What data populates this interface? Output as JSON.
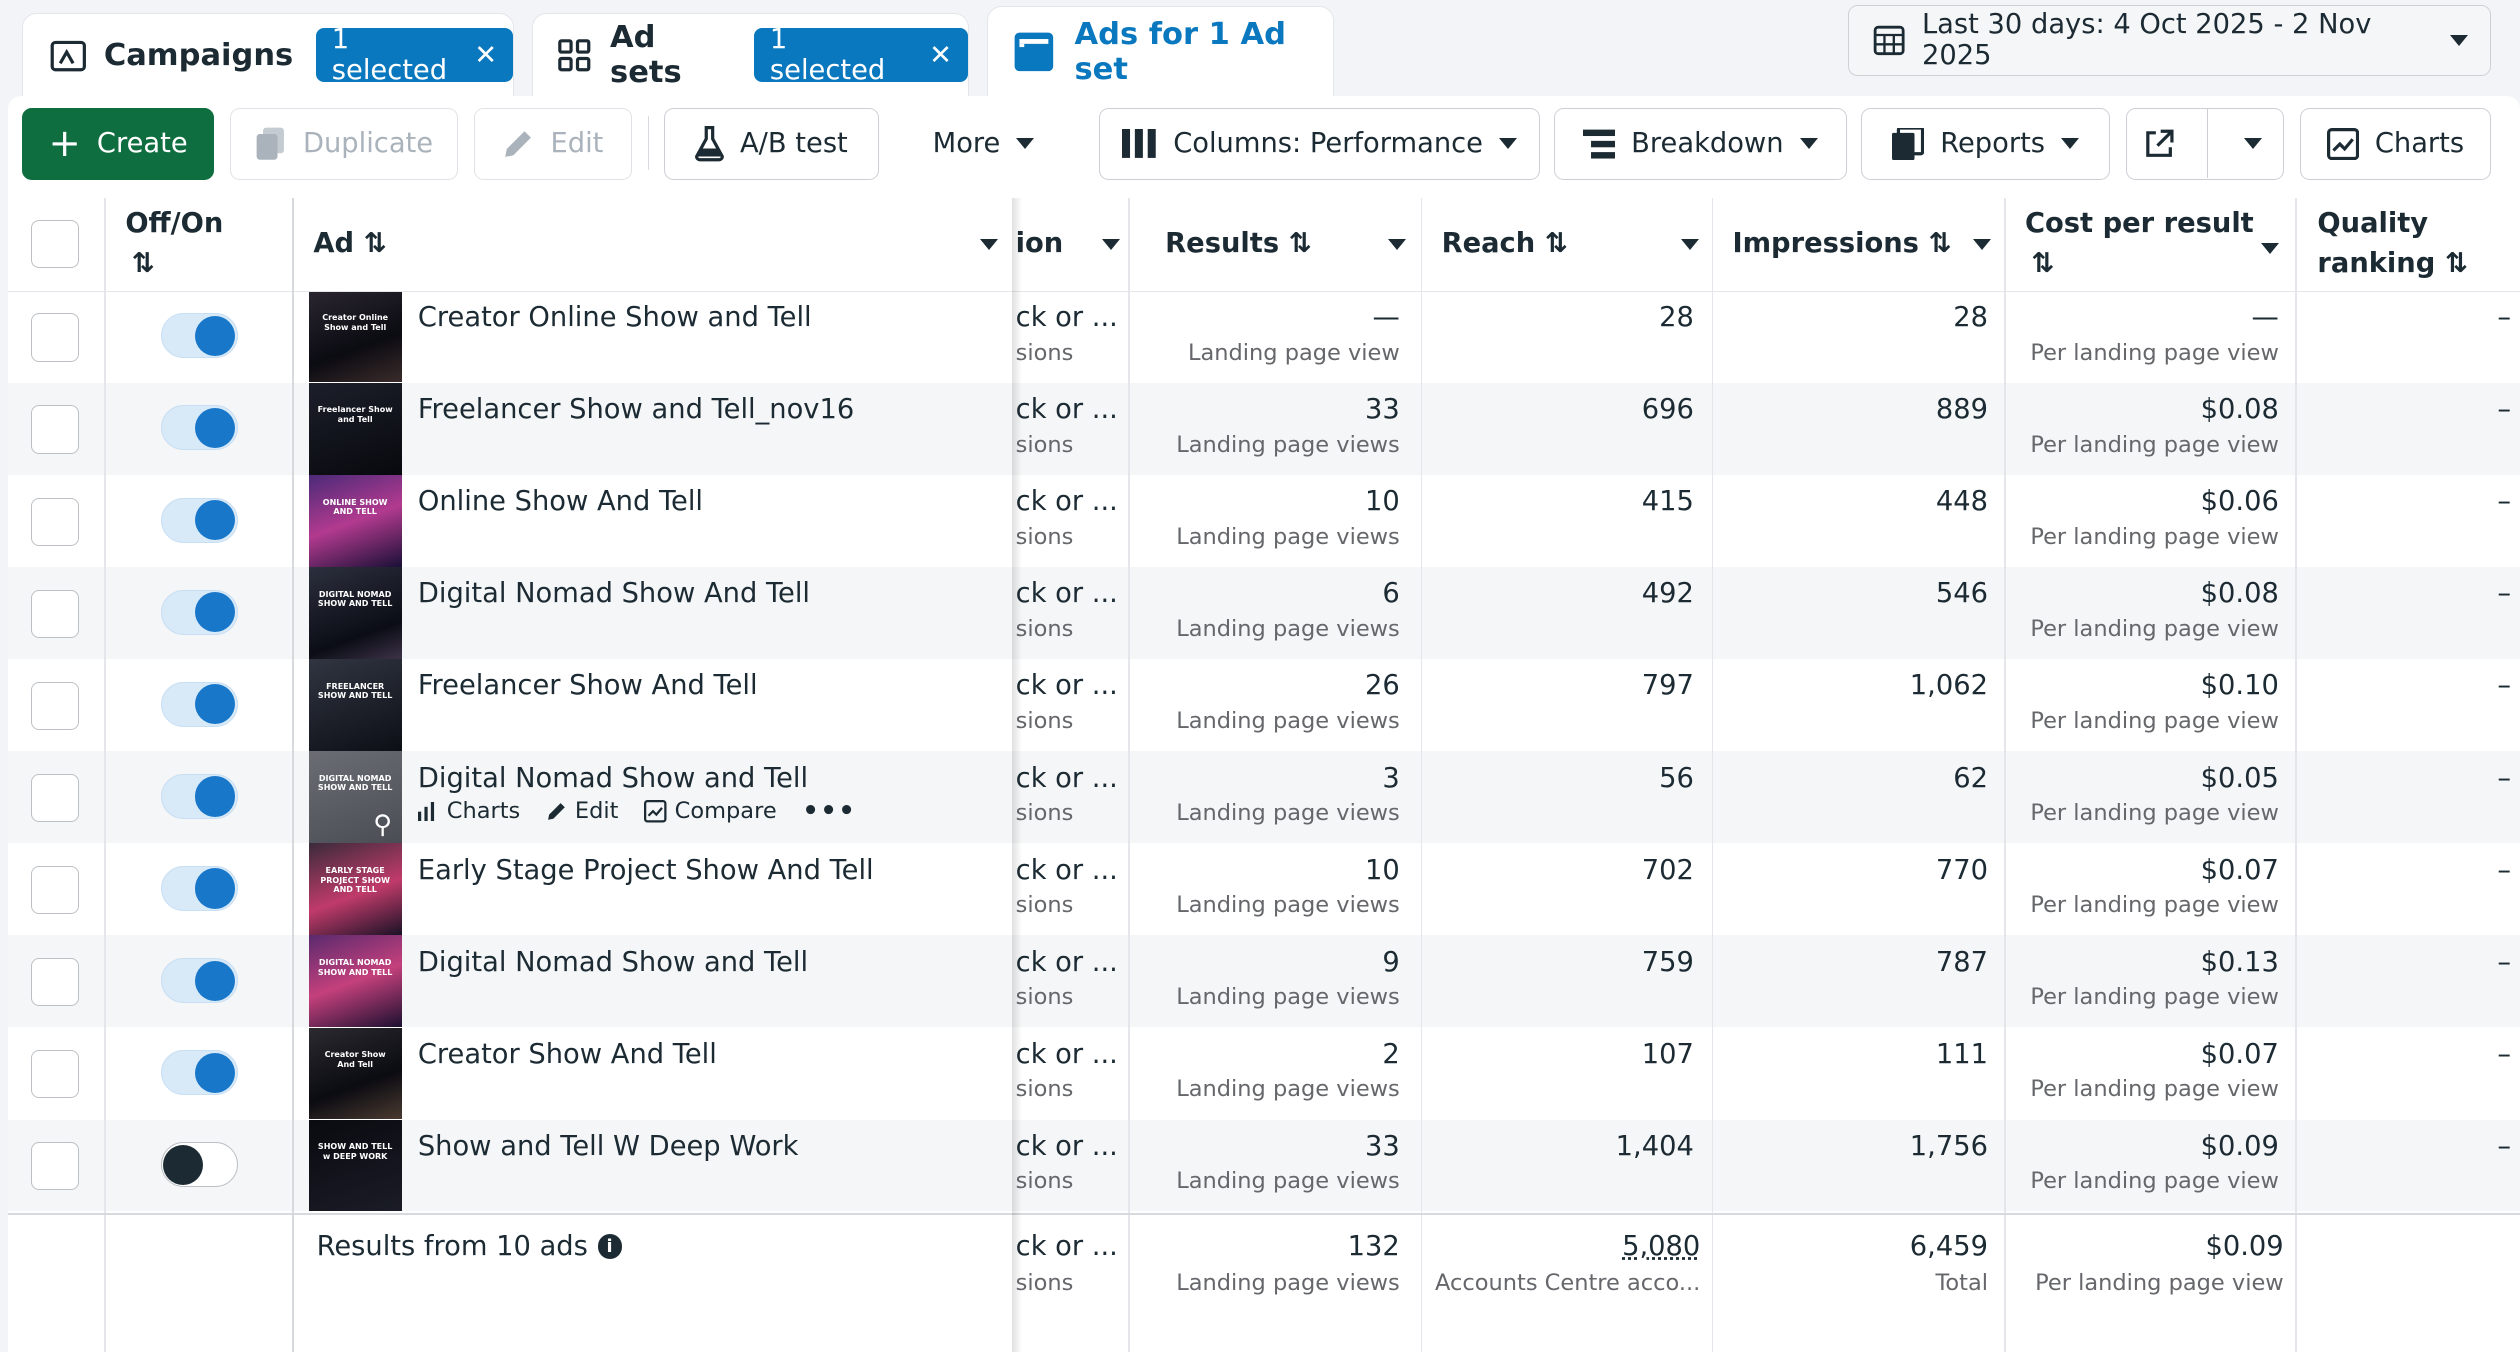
{
  "tabs": {
    "campaigns": {
      "label": "Campaigns",
      "badge": "1 selected"
    },
    "adsets": {
      "label": "Ad sets",
      "badge": "1 selected"
    },
    "ads": {
      "label": "Ads for 1 Ad set"
    }
  },
  "date_range": "Last 30 days: 4 Oct 2025 - 2 Nov 2025",
  "toolbar": {
    "create": "Create",
    "duplicate": "Duplicate",
    "edit": "Edit",
    "ab_test": "A/B test",
    "more": "More",
    "columns": "Columns: Performance",
    "breakdown": "Breakdown",
    "reports": "Reports",
    "charts": "Charts"
  },
  "headers": {
    "offon": "Off/On",
    "ad": "Ad",
    "objective_frag": "ion",
    "results": "Results",
    "reach": "Reach",
    "impressions": "Impressions",
    "cost_l1": "Cost per result",
    "quality_l1": "Quality",
    "quality_l2": "ranking"
  },
  "row_actions": {
    "charts": "Charts",
    "edit": "Edit",
    "compare": "Compare"
  },
  "rows": [
    {
      "name": "Creator Online Show and Tell",
      "thumb": "Creator Online Show and Tell",
      "obj1": "ck or ...",
      "obj2": "sions",
      "results": "—",
      "results_sub": "Landing page view",
      "reach": "28",
      "impressions": "28",
      "cost": "—",
      "cost_sub": "Per landing page view",
      "quality": "–",
      "on": true
    },
    {
      "name": "Freelancer Show and Tell_nov16",
      "thumb": "Freelancer Show and Tell",
      "obj1": "ck or ...",
      "obj2": "sions",
      "results": "33",
      "results_sub": "Landing page views",
      "reach": "696",
      "impressions": "889",
      "cost": "$0.08",
      "cost_sub": "Per landing page view",
      "quality": "–",
      "on": true
    },
    {
      "name": "Online Show And Tell",
      "thumb": "ONLINE SHOW AND TELL",
      "obj1": "ck or ...",
      "obj2": "sions",
      "results": "10",
      "results_sub": "Landing page views",
      "reach": "415",
      "impressions": "448",
      "cost": "$0.06",
      "cost_sub": "Per landing page view",
      "quality": "–",
      "on": true
    },
    {
      "name": "Digital Nomad Show And Tell",
      "thumb": "DIGITAL NOMAD SHOW AND TELL",
      "obj1": "ck or ...",
      "obj2": "sions",
      "results": "6",
      "results_sub": "Landing page views",
      "reach": "492",
      "impressions": "546",
      "cost": "$0.08",
      "cost_sub": "Per landing page view",
      "quality": "–",
      "on": true
    },
    {
      "name": "Freelancer Show And Tell",
      "thumb": "FREELANCER SHOW AND TELL",
      "obj1": "ck or ...",
      "obj2": "sions",
      "results": "26",
      "results_sub": "Landing page views",
      "reach": "797",
      "impressions": "1,062",
      "cost": "$0.10",
      "cost_sub": "Per landing page view",
      "quality": "–",
      "on": true
    },
    {
      "name": "Digital Nomad Show and Tell",
      "thumb": "DIGITAL NOMAD SHOW AND TELL",
      "obj1": "ck or ...",
      "obj2": "sions",
      "results": "3",
      "results_sub": "Landing page views",
      "reach": "56",
      "impressions": "62",
      "cost": "$0.05",
      "cost_sub": "Per landing page view",
      "quality": "–",
      "on": true
    },
    {
      "name": "Early Stage Project Show And Tell",
      "thumb": "EARLY STAGE PROJECT SHOW AND TELL",
      "obj1": "ck or ...",
      "obj2": "sions",
      "results": "10",
      "results_sub": "Landing page views",
      "reach": "702",
      "impressions": "770",
      "cost": "$0.07",
      "cost_sub": "Per landing page view",
      "quality": "–",
      "on": true
    },
    {
      "name": "Digital Nomad Show and Tell",
      "thumb": "DIGITAL NOMAD SHOW AND TELL",
      "obj1": "ck or ...",
      "obj2": "sions",
      "results": "9",
      "results_sub": "Landing page views",
      "reach": "759",
      "impressions": "787",
      "cost": "$0.13",
      "cost_sub": "Per landing page view",
      "quality": "–",
      "on": true
    },
    {
      "name": "Creator Show And Tell",
      "thumb": "Creator Show And Tell",
      "obj1": "ck or ...",
      "obj2": "sions",
      "results": "2",
      "results_sub": "Landing page views",
      "reach": "107",
      "impressions": "111",
      "cost": "$0.07",
      "cost_sub": "Per landing page view",
      "quality": "–",
      "on": true
    },
    {
      "name": "Show and Tell W Deep Work",
      "thumb": "SHOW AND TELL w DEEP WORK",
      "obj1": "ck or ...",
      "obj2": "sions",
      "results": "33",
      "results_sub": "Landing page views",
      "reach": "1,404",
      "impressions": "1,756",
      "cost": "$0.09",
      "cost_sub": "Per landing page view",
      "quality": "–",
      "on": false
    }
  ],
  "totals": {
    "label": "Results from 10 ads",
    "obj1": "ck or ...",
    "obj2": "sions",
    "results": "132",
    "results_sub": "Landing page views",
    "reach": "5,080",
    "reach_sub": "Accounts Centre acco...",
    "impressions": "6,459",
    "impressions_sub": "Total",
    "cost": "$0.09",
    "cost_sub": "Per landing page view"
  },
  "colors": {
    "accent": "#0a78be",
    "create": "#0f6e3f",
    "toggle": "#1877c9"
  },
  "icons": [
    "campaign-icon",
    "adsets-grid-icon",
    "ads-panel-icon",
    "close-icon",
    "calendar-icon",
    "plus-icon",
    "duplicate-icon",
    "pencil-icon",
    "flask-icon",
    "columns-icon",
    "breakdown-icon",
    "reports-icon",
    "export-icon",
    "charts-icon",
    "info-icon",
    "zoom-icon"
  ]
}
